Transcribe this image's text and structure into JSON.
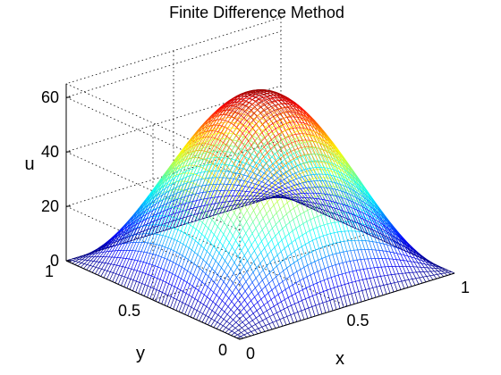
{
  "chart_data": {
    "type": "surface",
    "title": "Finite Difference Method",
    "xlabel": "x",
    "ylabel": "y",
    "zlabel": "u",
    "xlim": [
      0,
      1
    ],
    "ylim": [
      0,
      1
    ],
    "zlim": [
      0,
      65
    ],
    "x_ticks": [
      "0",
      "0.5",
      "1"
    ],
    "y_ticks": [
      "0",
      "0.5",
      "1"
    ],
    "z_ticks": [
      "0",
      "20",
      "40",
      "60"
    ],
    "grid": true,
    "colormap": "jet",
    "surface": {
      "function": "u(x,y) = 64 * sin(pi*x) * sin(pi*y)",
      "peak": {
        "x": 0.5,
        "y": 0.5,
        "u": 64
      },
      "boundary_value": 0,
      "mesh_points_per_side": 61
    }
  }
}
